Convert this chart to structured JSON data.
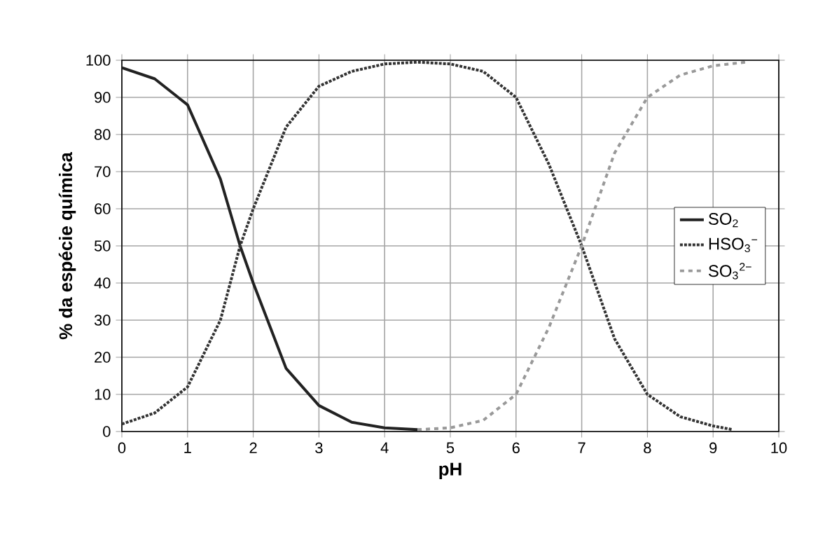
{
  "chart_data": {
    "type": "line",
    "xlabel": "pH",
    "ylabel": "% da espécie química",
    "xlim": [
      0,
      10
    ],
    "ylim": [
      0,
      100
    ],
    "xticks": [
      0,
      1,
      2,
      3,
      4,
      5,
      6,
      7,
      8,
      9,
      10
    ],
    "yticks": [
      0,
      10,
      20,
      30,
      40,
      50,
      60,
      70,
      80,
      90,
      100
    ],
    "grid": true,
    "legend": "right",
    "marker": "none",
    "series": [
      {
        "name": "SO$_{2}$",
        "color": "#222222",
        "line_style": "solid",
        "x": [
          0,
          0.5,
          1,
          1.5,
          1.8,
          2,
          2.5,
          3,
          3.5,
          4,
          4.5
        ],
        "values": [
          98,
          95,
          88,
          68,
          50,
          40,
          17,
          7,
          2.5,
          1,
          0.5
        ]
      },
      {
        "name": "HSO$_{3}$$^{−}$",
        "color": "#333333",
        "line_style": "dotted",
        "x": [
          0,
          0.5,
          1,
          1.5,
          1.8,
          2,
          2.5,
          3,
          3.5,
          4,
          4.5,
          5,
          5.5,
          6,
          6.5,
          7,
          7.5,
          8,
          8.5,
          9,
          9.3
        ],
        "values": [
          2,
          5,
          12,
          30,
          50,
          60,
          82,
          93,
          97,
          99,
          99.5,
          99,
          97,
          90,
          72,
          50,
          25,
          10,
          4,
          1.5,
          0.5
        ]
      },
      {
        "name": "SO$_{3}$$^{2−}$",
        "color": "#999999",
        "line_style": "dashed",
        "x": [
          4.5,
          5,
          5.5,
          6,
          6.5,
          7,
          7.5,
          8,
          8.5,
          9,
          9.5
        ],
        "values": [
          0.5,
          1,
          3,
          10,
          28,
          50,
          75,
          90,
          96,
          98.5,
          99.5
        ]
      }
    ]
  }
}
